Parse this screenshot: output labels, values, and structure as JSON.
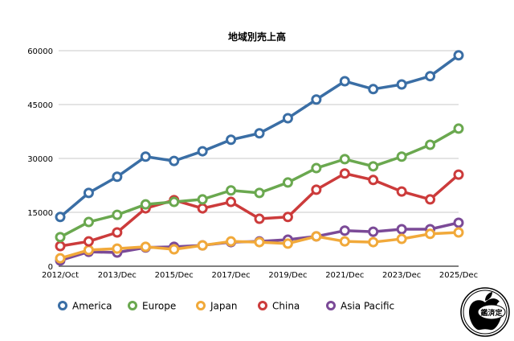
{
  "chart_data": {
    "type": "line",
    "title": "地域別売上高",
    "xlabel": "",
    "ylabel": "",
    "ylim": [
      0,
      60000
    ],
    "yticks": [
      0,
      15000,
      30000,
      45000,
      60000
    ],
    "ytick_labels": [
      "0",
      "15000",
      "30000",
      "45000",
      "60000"
    ],
    "x_tick_labels": [
      {
        "index": 0,
        "label": "2012/Oct"
      },
      {
        "index": 2,
        "label": "2013/Dec"
      },
      {
        "index": 4,
        "label": "2015/Dec"
      },
      {
        "index": 6,
        "label": "2017/Dec"
      },
      {
        "index": 8,
        "label": "2019/Dec"
      },
      {
        "index": 10,
        "label": "2021/Dec"
      },
      {
        "index": 12,
        "label": "2023/Dec"
      },
      {
        "index": 14,
        "label": "2025/Dec"
      }
    ],
    "point_count": 15,
    "grid": true,
    "legend_position": "bottom",
    "series": [
      {
        "name": "America",
        "color": "#3a6ea5",
        "values": [
          13700,
          20400,
          24900,
          30500,
          29300,
          32000,
          35200,
          37000,
          41200,
          46400,
          51500,
          49300,
          50600,
          52900,
          58700
        ]
      },
      {
        "name": "Europe",
        "color": "#6aa84f",
        "values": [
          8100,
          12300,
          14300,
          17200,
          17900,
          18600,
          21100,
          20400,
          23300,
          27300,
          29800,
          27800,
          30500,
          33800,
          38300
        ]
      },
      {
        "name": "Japan",
        "color": "#f1a93a",
        "values": [
          2200,
          4500,
          4900,
          5400,
          4700,
          5800,
          6900,
          6700,
          6300,
          8300,
          6900,
          6700,
          7600,
          9000,
          9400
        ]
      },
      {
        "name": "China",
        "color": "#cc3b3b",
        "values": [
          5600,
          6900,
          9400,
          16100,
          18400,
          16100,
          17900,
          13200,
          13700,
          21300,
          25800,
          24000,
          20800,
          18600,
          25500
        ]
      },
      {
        "name": "Asia Pacific",
        "color": "#7b4a97",
        "values": [
          1600,
          4000,
          3800,
          5200,
          5400,
          5800,
          6700,
          6900,
          7400,
          8300,
          9900,
          9600,
          10300,
          10300,
          12100
        ]
      }
    ],
    "draw_order": [
      4,
      2,
      3,
      1,
      0
    ]
  },
  "logo": {
    "text": "鑑済定",
    "icon": "apple-logo"
  }
}
